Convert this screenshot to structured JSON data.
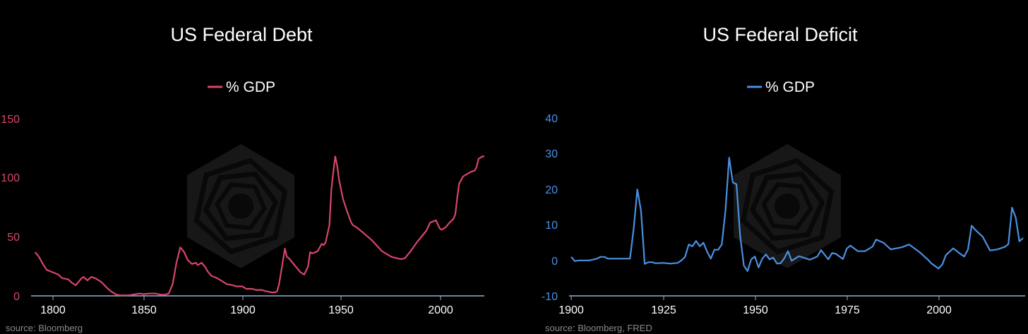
{
  "chart_data": [
    {
      "type": "line",
      "title": "US Federal Debt",
      "xlabel": "",
      "ylabel": "",
      "xlim": [
        1790,
        2023
      ],
      "ylim": [
        0,
        150
      ],
      "xticks": [
        "1800",
        "1850",
        "1900",
        "1950",
        "2000"
      ],
      "yticks": [
        "0",
        "50",
        "100",
        "150"
      ],
      "grid": false,
      "legend": "top-center",
      "source": "source: Bloomberg",
      "series": [
        {
          "name": "% GDP",
          "color": "#d9456a",
          "x": [
            1791,
            1792,
            1793,
            1795,
            1797,
            1800,
            1803,
            1805,
            1808,
            1810,
            1812,
            1815,
            1816,
            1818,
            1820,
            1822,
            1825,
            1828,
            1830,
            1833,
            1835,
            1838,
            1840,
            1843,
            1845,
            1847,
            1850,
            1853,
            1856,
            1858,
            1860,
            1862,
            1864,
            1866,
            1868,
            1869,
            1870,
            1872,
            1874,
            1875,
            1877,
            1879,
            1880,
            1882,
            1885,
            1888,
            1890,
            1893,
            1895,
            1898,
            1900,
            1903,
            1905,
            1908,
            1910,
            1913,
            1915,
            1916,
            1917,
            1919,
            1920,
            1921,
            1922,
            1925,
            1928,
            1930,
            1932,
            1933,
            1934,
            1936,
            1937,
            1939,
            1940,
            1941,
            1943,
            1944,
            1945,
            1946,
            1947,
            1948,
            1950,
            1952,
            1954,
            1955,
            1957,
            1960,
            1965,
            1970,
            1975,
            1980,
            1982,
            1985,
            1988,
            1990,
            1993,
            1995,
            1998,
            2000,
            2001,
            2003,
            2005,
            2007,
            2008,
            2009,
            2010,
            2012,
            2014,
            2016,
            2018,
            2019,
            2020,
            2021,
            2022,
            2023
          ],
          "values": [
            37,
            35,
            33,
            27,
            22,
            20,
            18,
            15,
            14,
            11,
            9,
            15,
            16,
            13,
            16,
            15,
            12,
            7,
            4,
            1,
            0.5,
            0.5,
            0.6,
            1.5,
            2,
            1.5,
            2,
            2,
            1,
            1,
            2,
            10,
            28,
            41,
            37,
            33,
            30,
            27,
            28,
            26,
            28,
            24,
            21,
            17,
            15,
            12,
            10,
            9,
            8,
            8,
            6,
            6,
            5,
            5,
            4,
            3,
            3,
            4,
            10,
            30,
            40,
            33,
            32,
            26,
            20,
            18,
            25,
            37,
            36,
            37,
            38,
            44,
            43,
            45,
            60,
            90,
            105,
            118,
            110,
            98,
            82,
            72,
            63,
            60,
            58,
            54,
            47,
            38,
            33,
            31,
            32,
            38,
            45,
            49,
            55,
            62,
            64,
            57,
            56,
            58,
            62,
            65,
            69,
            83,
            95,
            101,
            103,
            105,
            106,
            109,
            116,
            117,
            118,
            118
          ]
        }
      ]
    },
    {
      "type": "line",
      "title": "US Federal Deficit",
      "xlabel": "",
      "ylabel": "",
      "xlim": [
        1900,
        2023
      ],
      "ylim": [
        -10,
        40
      ],
      "xticks": [
        "1900",
        "1925",
        "1950",
        "1975",
        "2000"
      ],
      "yticks": [
        "-10",
        "0",
        "10",
        "20",
        "30",
        "40"
      ],
      "grid": false,
      "legend": "top-center",
      "source": "source: Bloomberg, FRED",
      "series": [
        {
          "name": "% GDP",
          "color": "#4a90e2",
          "x": [
            1900,
            1901,
            1902,
            1903,
            1905,
            1907,
            1908,
            1909,
            1910,
            1912,
            1915,
            1916,
            1917,
            1918,
            1919,
            1920,
            1921,
            1922,
            1923,
            1925,
            1927,
            1929,
            1930,
            1931,
            1932,
            1933,
            1934,
            1935,
            1936,
            1937,
            1938,
            1939,
            1940,
            1941,
            1942,
            1943,
            1944,
            1945,
            1946,
            1947,
            1948,
            1949,
            1950,
            1951,
            1952,
            1953,
            1954,
            1955,
            1956,
            1957,
            1958,
            1959,
            1960,
            1962,
            1965,
            1967,
            1968,
            1970,
            1971,
            1972,
            1974,
            1975,
            1976,
            1978,
            1980,
            1982,
            1983,
            1985,
            1987,
            1990,
            1992,
            1995,
            1997,
            1998,
            2000,
            2001,
            2002,
            2004,
            2006,
            2007,
            2008,
            2009,
            2010,
            2012,
            2014,
            2016,
            2018,
            2019,
            2020,
            2021,
            2022,
            2023
          ],
          "values": [
            1,
            -0.2,
            0,
            0,
            0,
            0.5,
            1,
            1,
            0.5,
            0.5,
            0.5,
            0.5,
            9,
            20,
            14,
            -1,
            -0.5,
            -0.5,
            -0.8,
            -0.7,
            -0.9,
            -0.7,
            0,
            1,
            4.5,
            4,
            5.5,
            4,
            5,
            2.5,
            0.5,
            3,
            3,
            4.5,
            14,
            29,
            22,
            21.5,
            7,
            -1.5,
            -3,
            0.3,
            1.1,
            -2,
            0.5,
            1.7,
            0.3,
            0.8,
            -0.9,
            -0.8,
            0.6,
            2.6,
            -0.1,
            1.2,
            0.2,
            1.1,
            2.9,
            0.3,
            2.1,
            1.9,
            0.4,
            3.3,
            4.2,
            2.6,
            2.6,
            3.9,
            5.9,
            5,
            3.1,
            3.7,
            4.5,
            2.2,
            0.3,
            -0.8,
            -2.3,
            -1.2,
            1.5,
            3.4,
            1.8,
            1.1,
            3.1,
            9.8,
            8.6,
            6.7,
            2.8,
            3.1,
            3.8,
            4.6,
            14.9,
            12.1,
            5.4,
            6.3
          ]
        }
      ]
    }
  ]
}
